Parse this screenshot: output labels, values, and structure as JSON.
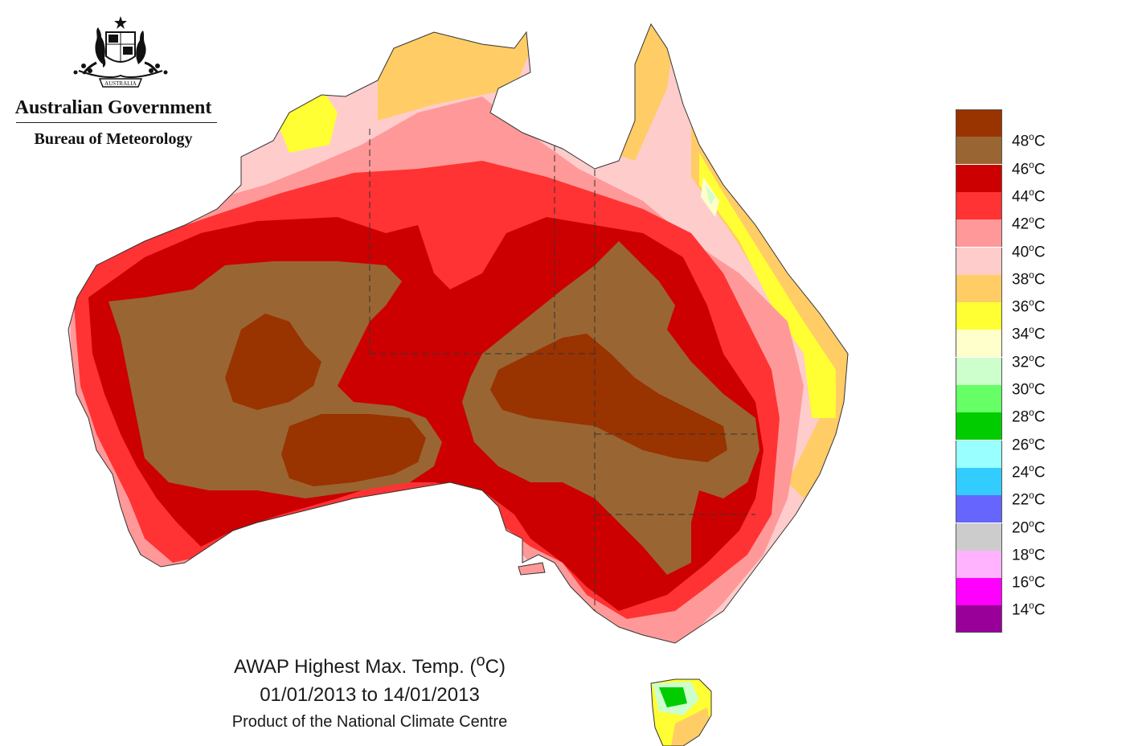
{
  "logo": {
    "government": "Australian Government",
    "bureau": "Bureau of Meteorology",
    "crest_icon": "coat-of-arms-icon",
    "crest_text": "AUSTRALIA"
  },
  "caption": {
    "title_prefix": "AWAP Highest Max. Temp. (",
    "title_degree": "o",
    "title_suffix": "C)",
    "dates": "01/01/2013 to 14/01/2013",
    "product": "Product of the National Climate Centre"
  },
  "legend": {
    "degree_symbol": "o",
    "unit": "C",
    "colors": [
      "#993300",
      "#996633",
      "#cc0000",
      "#ff3333",
      "#ff9999",
      "#ffcccc",
      "#ffcc66",
      "#ffff33",
      "#ffffcc",
      "#ccffcc",
      "#66ff66",
      "#00cc00",
      "#99ffff",
      "#33ccff",
      "#6666ff",
      "#cccccc",
      "#ffb3ff",
      "#ff00ff",
      "#990099"
    ],
    "labels": [
      "48",
      "46",
      "44",
      "42",
      "40",
      "38",
      "36",
      "34",
      "32",
      "30",
      "28",
      "26",
      "24",
      "22",
      "20",
      "18",
      "16",
      "14"
    ]
  },
  "map": {
    "colors": {
      "c48": "#993300",
      "c46": "#996633",
      "c44": "#cc0000",
      "c42": "#ff3333",
      "c40": "#ff9999",
      "c38": "#ffcccc",
      "c36": "#ffcc66",
      "c34": "#ffff33",
      "c32": "#ffffcc",
      "c30": "#ccffcc",
      "c28": "#66ff66",
      "c26": "#00cc00",
      "border": "#333333"
    }
  }
}
